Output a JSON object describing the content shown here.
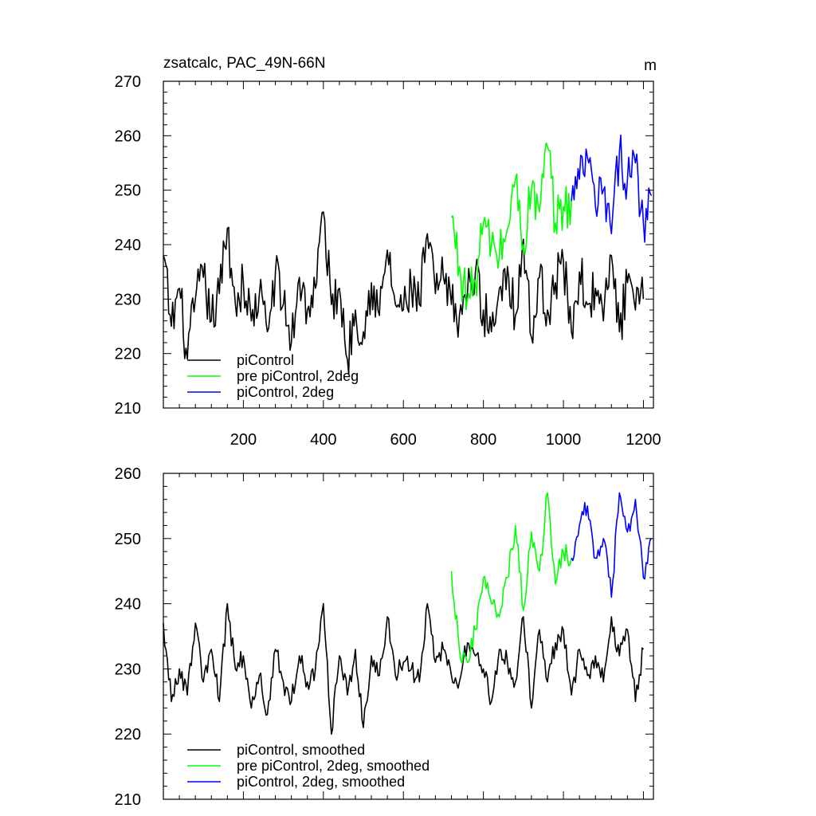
{
  "chart_data": [
    {
      "type": "line",
      "title": "zsatcalc, PAC_49N-66N",
      "units": "m",
      "xlim": [
        0,
        1225
      ],
      "ylim": [
        210,
        270
      ],
      "x_ticks": [
        200,
        400,
        600,
        800,
        1000,
        1200
      ],
      "y_ticks": [
        210,
        220,
        230,
        240,
        250,
        260,
        270
      ],
      "legend_location": "bottom-left",
      "series": [
        {
          "name": "piControl",
          "color": "#000000",
          "x": [
            0,
            20,
            40,
            60,
            80,
            100,
            120,
            140,
            160,
            180,
            200,
            220,
            240,
            260,
            280,
            300,
            320,
            340,
            360,
            380,
            400,
            420,
            440,
            460,
            480,
            500,
            520,
            540,
            560,
            580,
            600,
            620,
            640,
            660,
            680,
            700,
            720,
            740,
            760,
            780,
            800,
            820,
            840,
            860,
            880,
            900,
            920,
            940,
            960,
            980,
            1000,
            1020,
            1040,
            1060,
            1080,
            1100,
            1120,
            1140,
            1160,
            1180,
            1200
          ],
          "values": [
            238,
            225,
            232,
            219,
            230,
            234,
            226,
            231,
            243,
            229,
            233,
            226,
            231,
            224,
            235,
            229,
            222,
            234,
            228,
            232,
            246,
            229,
            232,
            219,
            228,
            224,
            233,
            227,
            239,
            229,
            228,
            232,
            229,
            242,
            231,
            234,
            229,
            227,
            231,
            235,
            228,
            224,
            232,
            236,
            227,
            241,
            223,
            234,
            228,
            233,
            237,
            224,
            235,
            229,
            232,
            226,
            238,
            224,
            233,
            228,
            230
          ]
        },
        {
          "name": "pre piControl, 2deg",
          "color": "#00ff00",
          "x": [
            720,
            740,
            760,
            780,
            800,
            820,
            840,
            860,
            880,
            900,
            920,
            940,
            960,
            980,
            1000,
            1020
          ],
          "values": [
            245,
            236,
            230,
            233,
            244,
            240,
            238,
            243,
            252,
            240,
            250,
            246,
            258,
            244,
            247,
            248
          ]
        },
        {
          "name": "piControl, 2deg",
          "color": "#0000ff",
          "x": [
            1020,
            1040,
            1060,
            1080,
            1100,
            1120,
            1140,
            1160,
            1180,
            1200,
            1220
          ],
          "values": [
            248,
            252,
            256,
            247,
            250,
            242,
            257,
            252,
            255,
            244,
            249
          ]
        }
      ]
    },
    {
      "type": "line",
      "title": "",
      "xlim": [
        0,
        1225
      ],
      "ylim": [
        210,
        260
      ],
      "x_ticks": [
        200,
        400,
        600,
        800,
        1000,
        1200
      ],
      "y_ticks": [
        210,
        220,
        230,
        240,
        250,
        260
      ],
      "legend_location": "bottom-left",
      "series": [
        {
          "name": "piControl, smoothed",
          "color": "#000000",
          "x": [
            0,
            20,
            40,
            60,
            80,
            100,
            120,
            140,
            160,
            180,
            200,
            220,
            240,
            260,
            280,
            300,
            320,
            340,
            360,
            380,
            400,
            420,
            440,
            460,
            480,
            500,
            520,
            540,
            560,
            580,
            600,
            620,
            640,
            660,
            680,
            700,
            720,
            740,
            760,
            780,
            800,
            820,
            840,
            860,
            880,
            900,
            920,
            940,
            960,
            980,
            1000,
            1020,
            1040,
            1060,
            1080,
            1100,
            1120,
            1140,
            1160,
            1180,
            1200
          ],
          "values": [
            237,
            225,
            230,
            226,
            237,
            228,
            233,
            225,
            240,
            230,
            232,
            224,
            229,
            223,
            233,
            228,
            225,
            232,
            228,
            230,
            240,
            220,
            232,
            226,
            233,
            221,
            232,
            229,
            238,
            229,
            231,
            230,
            228,
            240,
            231,
            233,
            229,
            228,
            234,
            232,
            230,
            225,
            233,
            231,
            228,
            238,
            224,
            236,
            228,
            234,
            236,
            226,
            233,
            229,
            232,
            228,
            238,
            232,
            236,
            225,
            233
          ]
        },
        {
          "name": "pre piControl, 2deg, smoothed",
          "color": "#00ff00",
          "x": [
            720,
            740,
            760,
            780,
            800,
            820,
            840,
            860,
            880,
            900,
            920,
            940,
            960,
            980,
            1000,
            1020
          ],
          "values": [
            245,
            233,
            231,
            236,
            244,
            240,
            238,
            244,
            252,
            239,
            251,
            245,
            257,
            243,
            248,
            247
          ]
        },
        {
          "name": "piControl, 2deg, smoothed",
          "color": "#0000ff",
          "x": [
            1020,
            1040,
            1060,
            1080,
            1100,
            1120,
            1140,
            1160,
            1180,
            1200,
            1220
          ],
          "values": [
            247,
            252,
            255,
            247,
            250,
            241,
            257,
            251,
            256,
            244,
            250
          ]
        }
      ]
    }
  ]
}
